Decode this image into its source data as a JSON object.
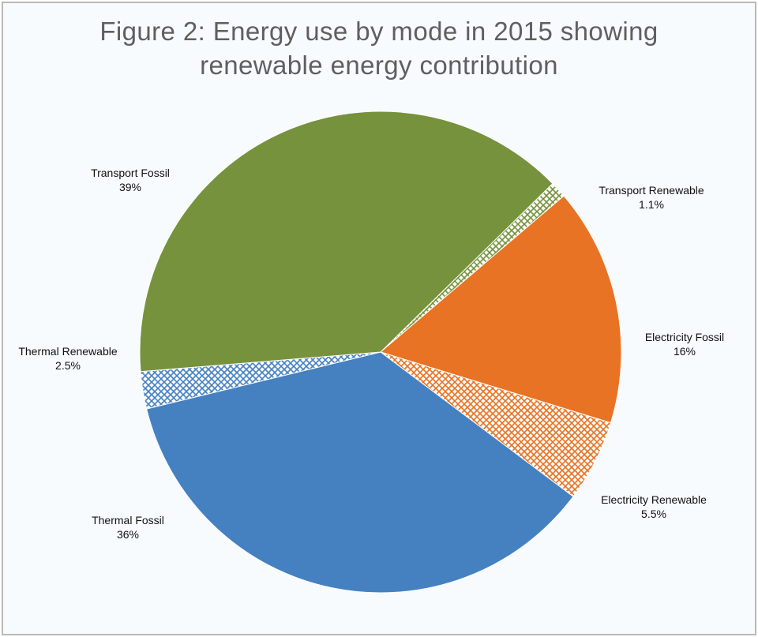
{
  "chart_data": {
    "type": "pie",
    "title": [
      "Figure 2: Energy use by mode in 2015 showing",
      "renewable energy contribution"
    ],
    "slices": [
      {
        "name": "Transport Renewable",
        "value": 1.1,
        "label": "1.1%",
        "color": "#76923c",
        "pattern": true
      },
      {
        "name": "Electricity  Fossil",
        "value": 16,
        "label": "16%",
        "color": "#e87324",
        "pattern": false
      },
      {
        "name": "Electricity  Renewable",
        "value": 5.5,
        "label": "5.5%",
        "color": "#e87324",
        "pattern": true
      },
      {
        "name": "Thermal Fossil",
        "value": 36,
        "label": "36%",
        "color": "#4581c1",
        "pattern": false
      },
      {
        "name": "Thermal Renewable",
        "value": 2.5,
        "label": "2.5%",
        "color": "#4581c1",
        "pattern": true
      },
      {
        "name": "Transport Fossil",
        "value": 39,
        "label": "39%",
        "color": "#76923c",
        "pattern": false
      }
    ],
    "legend": "none"
  }
}
